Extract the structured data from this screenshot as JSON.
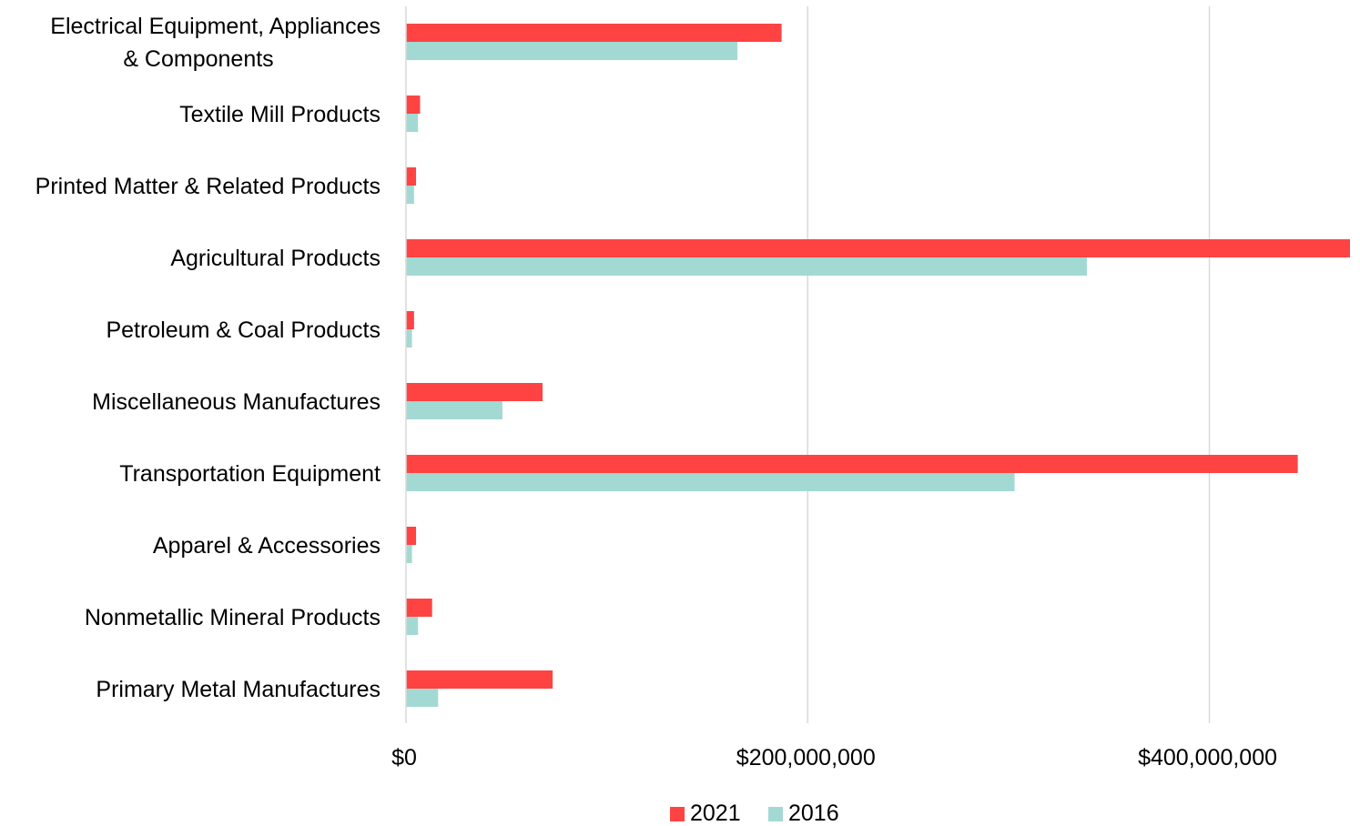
{
  "chart_data": {
    "type": "bar",
    "orientation": "horizontal",
    "categories": [
      [
        "Electrical Equipment, Appliances",
        "& Components"
      ],
      [
        "Textile Mill Products"
      ],
      [
        "Printed Matter & Related Products"
      ],
      [
        "Agricultural Products"
      ],
      [
        "Petroleum & Coal Products"
      ],
      [
        "Miscellaneous Manufactures"
      ],
      [
        "Transportation Equipment"
      ],
      [
        "Apparel & Accessories"
      ],
      [
        "Nonmetallic Mineral Products"
      ],
      [
        "Primary Metal Manufactures"
      ]
    ],
    "series": [
      {
        "name": "2021",
        "color": "#ff4343",
        "values": [
          187000000,
          7000000,
          5000000,
          470000000,
          4000000,
          68000000,
          444000000,
          5000000,
          13000000,
          73000000
        ]
      },
      {
        "name": "2016",
        "color": "#a3d9d3",
        "values": [
          165000000,
          6000000,
          4000000,
          339000000,
          3000000,
          48000000,
          303000000,
          3000000,
          6000000,
          16000000
        ]
      }
    ],
    "xlim": [
      0,
      470000000
    ],
    "xticks": [
      0,
      200000000,
      400000000
    ],
    "xtick_labels": [
      "$0",
      "$200,000,000",
      "$400,000,000"
    ],
    "grid": true,
    "legend_position": "bottom",
    "title": "",
    "xlabel": "",
    "ylabel": ""
  }
}
